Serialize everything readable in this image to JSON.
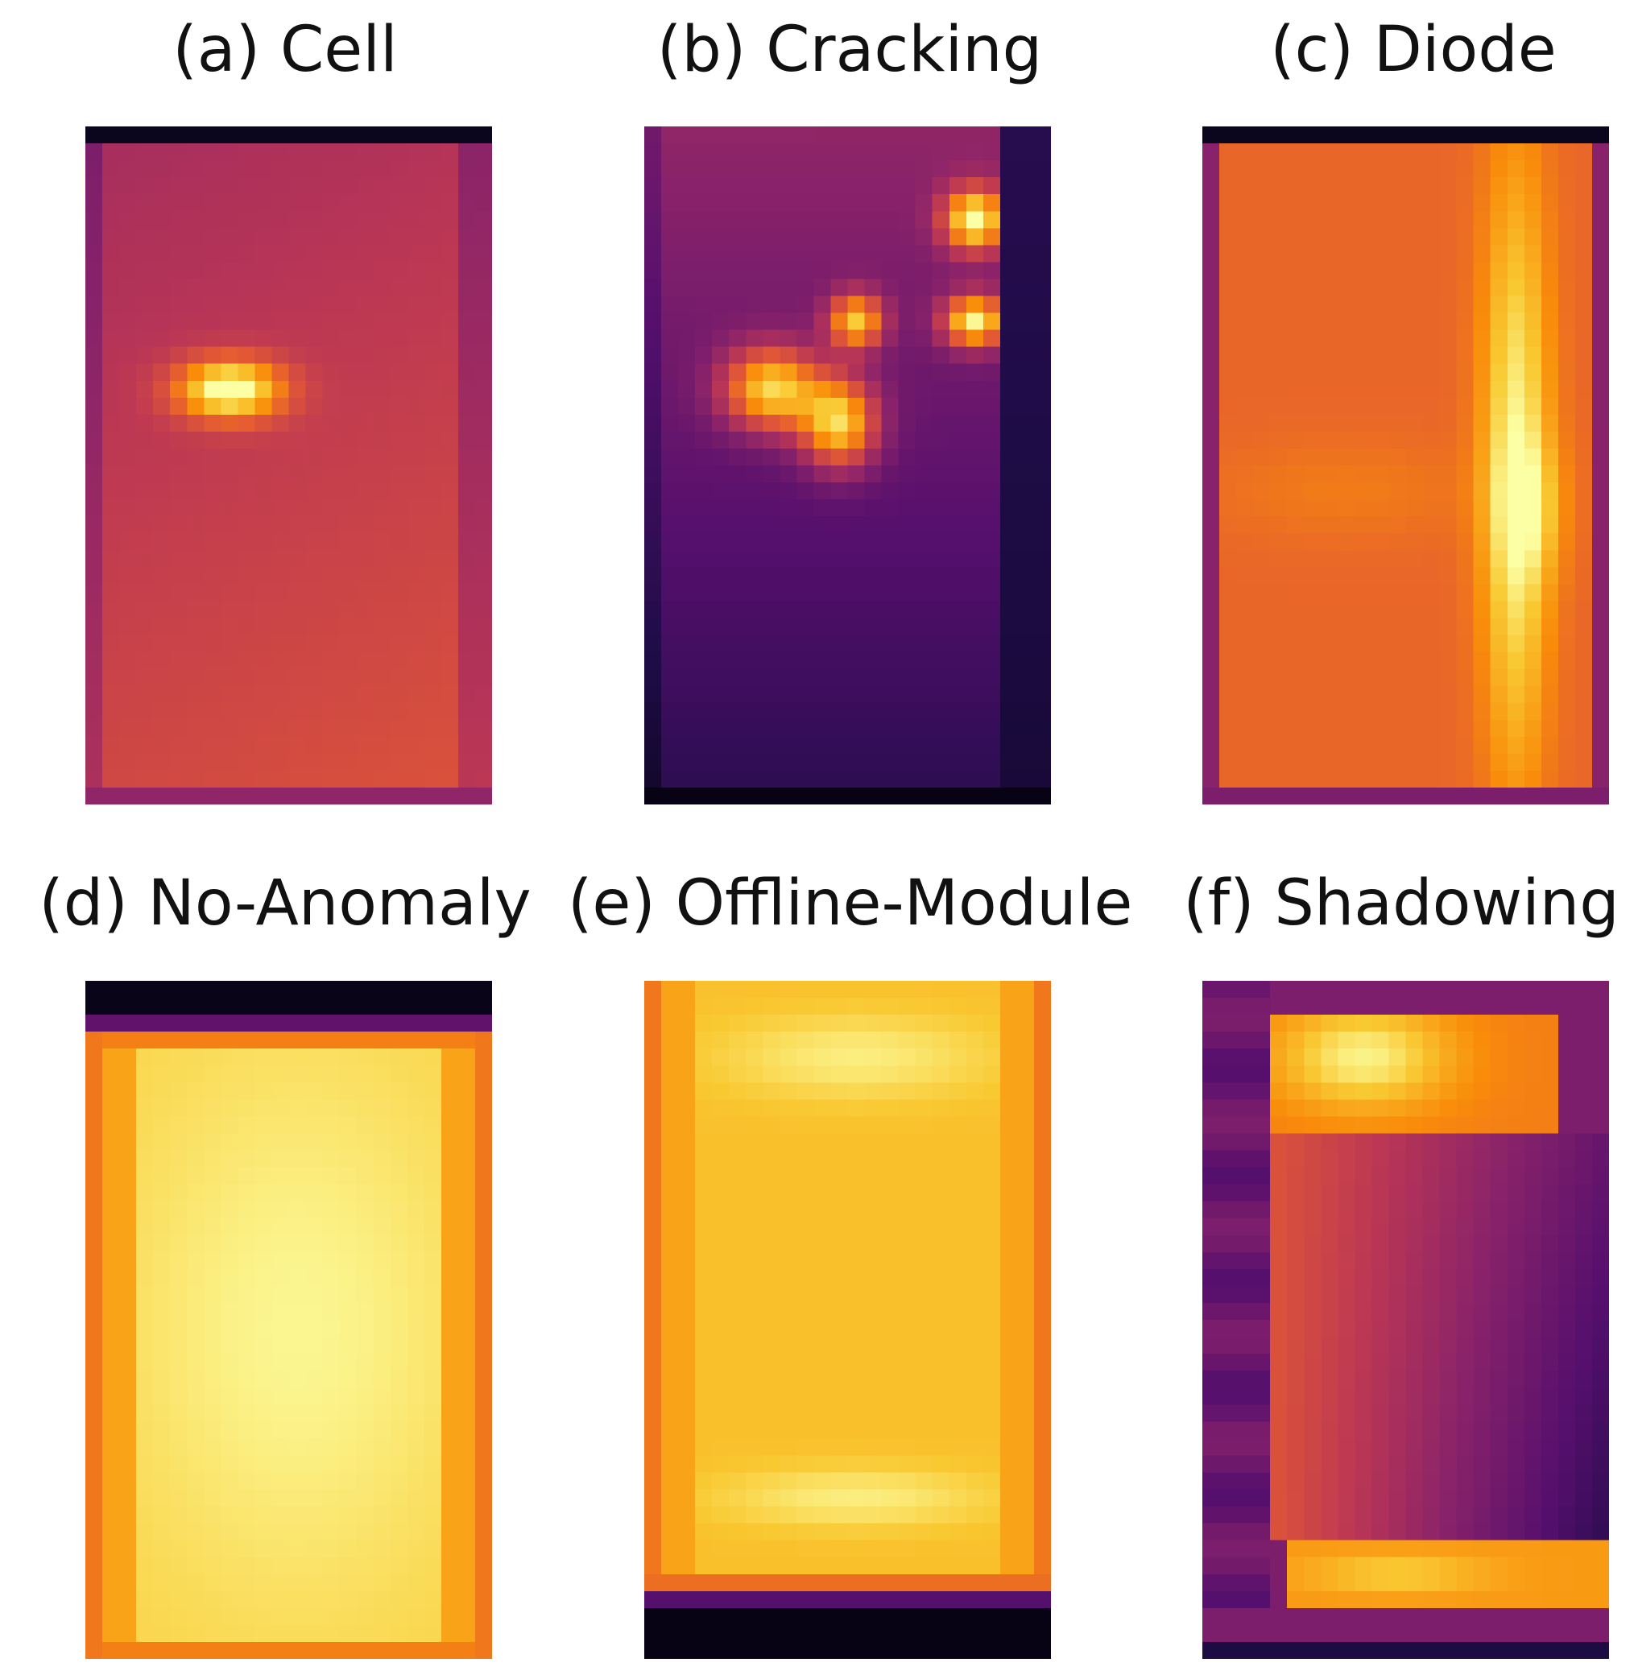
{
  "figure": {
    "panels": [
      {
        "label": "(a) Cell",
        "pattern": "cell"
      },
      {
        "label": "(b) Cracking",
        "pattern": "cracking"
      },
      {
        "label": "(c) Diode",
        "pattern": "diode"
      },
      {
        "label": "(d) No-Anomaly",
        "pattern": "no-anomaly"
      },
      {
        "label": "(e) Offline-Module",
        "pattern": "offline-module"
      },
      {
        "label": "(f) Shadowing",
        "pattern": "shadowing"
      }
    ],
    "colormap": "inferno",
    "grid": {
      "cols": 24,
      "rows": 40
    }
  }
}
